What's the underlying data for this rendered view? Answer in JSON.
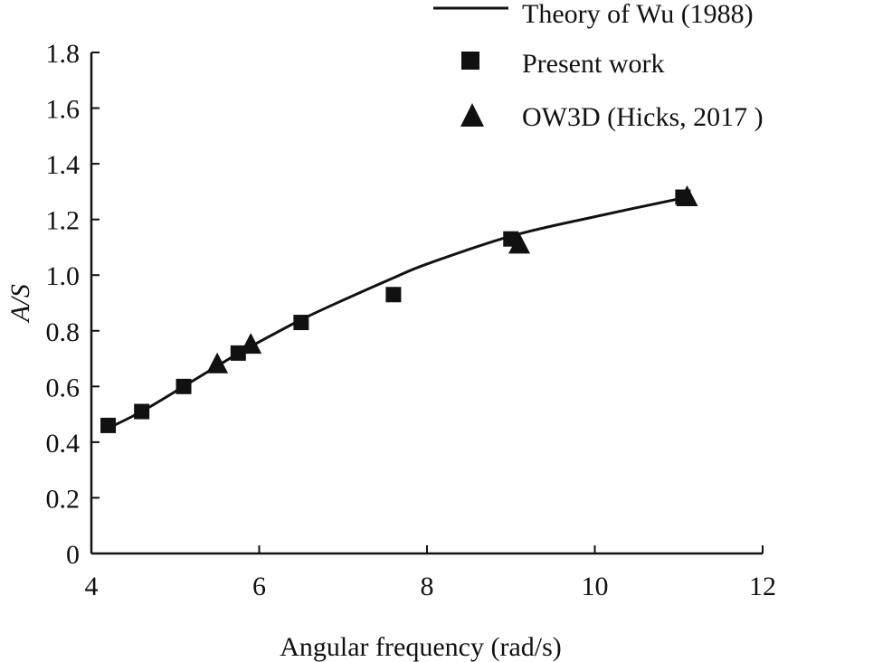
{
  "chart_data": {
    "type": "scatter",
    "xlabel": "Angular frequency (rad/s)",
    "ylabel": "A/S",
    "xlim": [
      4,
      12
    ],
    "ylim": [
      0,
      1.8
    ],
    "xticks": [
      "4",
      "6",
      "8",
      "10",
      "12"
    ],
    "yticks": [
      "0",
      "0.2",
      "0.4",
      "0.6",
      "0.8",
      "1.0",
      "1.2",
      "1.4",
      "1.6",
      "1.8"
    ],
    "legend_position": "top-right",
    "grid": false,
    "series": [
      {
        "name": "Theory of Wu (1988)",
        "kind": "line",
        "x": [
          4.2,
          4.6,
          5.1,
          5.7,
          6.0,
          6.5,
          7.0,
          7.6,
          8.0,
          9.0,
          10.0,
          11.1
        ],
        "y": [
          0.45,
          0.51,
          0.6,
          0.71,
          0.76,
          0.84,
          0.91,
          0.99,
          1.04,
          1.14,
          1.21,
          1.28
        ]
      },
      {
        "name": "Present work",
        "kind": "square",
        "x": [
          4.2,
          4.6,
          5.1,
          5.75,
          6.5,
          7.6,
          9.0,
          11.05
        ],
        "y": [
          0.46,
          0.51,
          0.6,
          0.72,
          0.83,
          0.93,
          1.13,
          1.28
        ]
      },
      {
        "name": "OW3D (Hicks, 2017 )",
        "kind": "triangle",
        "x": [
          5.5,
          5.9,
          9.1,
          11.1
        ],
        "y": [
          0.68,
          0.75,
          1.11,
          1.28
        ]
      }
    ]
  }
}
